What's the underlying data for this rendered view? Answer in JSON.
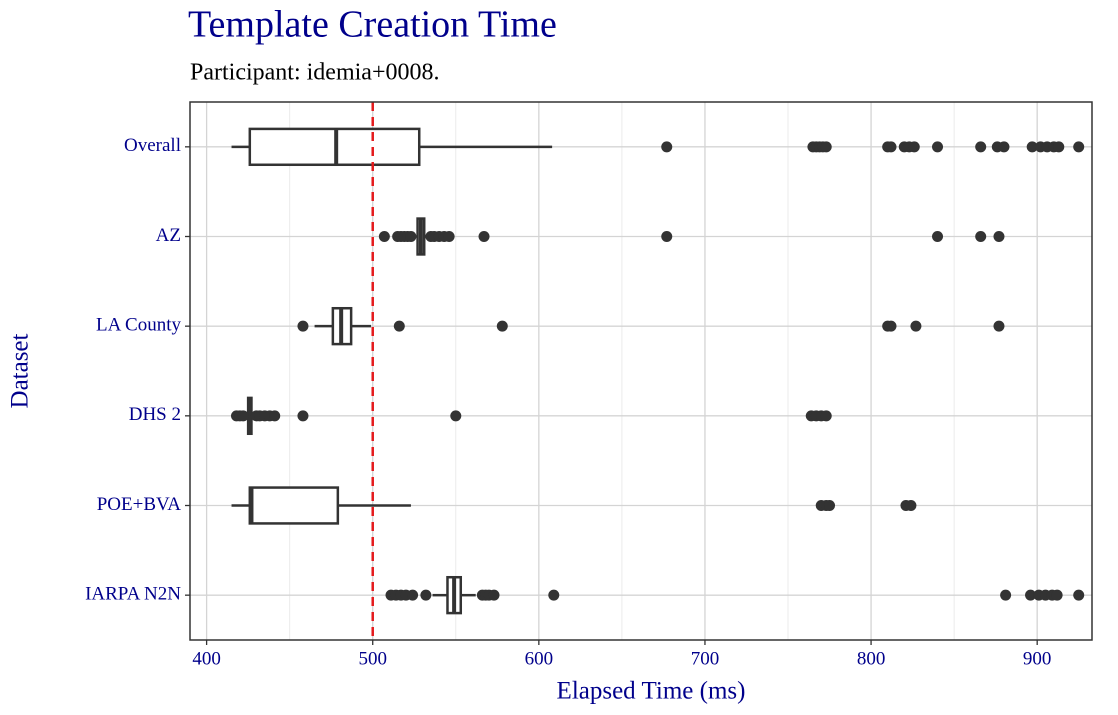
{
  "chart_data": {
    "type": "boxplot",
    "orientation": "horizontal",
    "title": "Template Creation Time",
    "subtitle": "Participant: idemia+0008.",
    "xlabel": "Elapsed Time (ms)",
    "ylabel": "Dataset",
    "categories": [
      "Overall",
      "AZ",
      "LA County",
      "DHS 2",
      "POE+BVA",
      "IARPA N2N"
    ],
    "boxes": [
      {
        "min": 415,
        "q1": 426,
        "median": 478,
        "q3": 528,
        "max": 608,
        "outliers": [
          677,
          765,
          767,
          769,
          771,
          773,
          810,
          812,
          820,
          823,
          826,
          840,
          866,
          876,
          880,
          897,
          902,
          906,
          910,
          913,
          925
        ]
      },
      {
        "min": 525,
        "q1": 527,
        "median": 529,
        "q3": 531,
        "max": 533,
        "outliers": [
          507,
          515,
          517,
          519,
          521,
          523,
          535,
          537,
          540,
          543,
          546,
          567,
          677,
          840,
          866,
          877
        ]
      },
      {
        "min": 465,
        "q1": 476,
        "median": 481,
        "q3": 487,
        "max": 499,
        "outliers": [
          458,
          516,
          578,
          810,
          812,
          827,
          877
        ]
      },
      {
        "min": 424,
        "q1": 425,
        "median": 426,
        "q3": 427,
        "max": 428,
        "outliers": [
          418,
          420,
          422,
          430,
          432,
          435,
          438,
          441,
          458,
          550,
          764,
          767,
          770,
          773
        ]
      },
      {
        "min": 415,
        "q1": 426,
        "median": 427,
        "q3": 479,
        "max": 523,
        "outliers": [
          770,
          773,
          775,
          821,
          824
        ]
      },
      {
        "min": 536,
        "q1": 545,
        "median": 549,
        "q3": 553,
        "max": 562,
        "outliers": [
          511,
          514,
          517,
          520,
          524,
          532,
          566,
          568,
          570,
          573,
          609,
          881,
          896,
          901,
          905,
          909,
          912,
          925
        ]
      }
    ],
    "box_color": "#333333",
    "box_fill": "#ffffff",
    "reference_line": 500,
    "reference_color": "#e41a1c",
    "xlim": [
      390,
      933
    ],
    "xticks": [
      400,
      500,
      600,
      700,
      800,
      900
    ],
    "minor_xticks": [
      450,
      550,
      650,
      750,
      850
    ],
    "grid": true,
    "text_color": "#00008b"
  }
}
